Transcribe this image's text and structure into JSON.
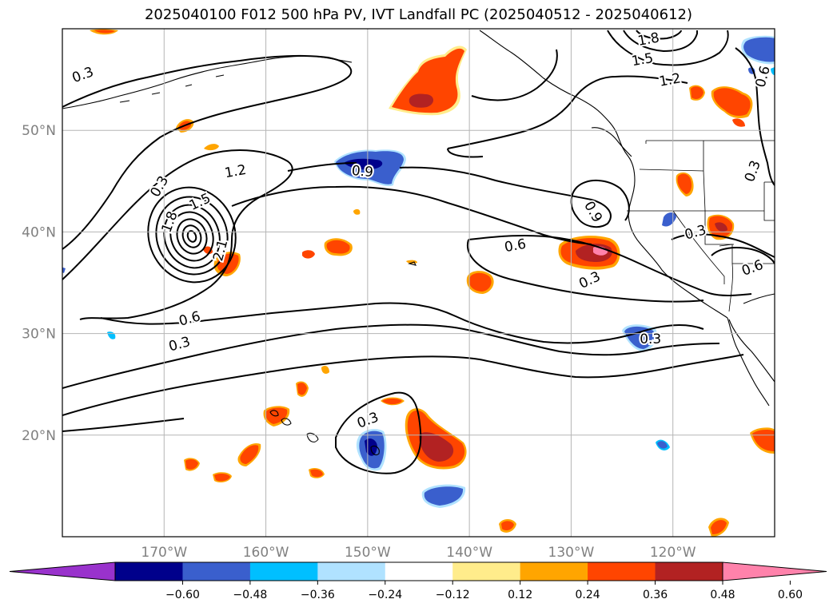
{
  "title": "2025040100 F012 500 hPa PV, IVT Landfall PC (2025040512 - 2025040612)",
  "lon_ticks": [
    {
      "lon": -170,
      "label": "170°W"
    },
    {
      "lon": -160,
      "label": "160°W"
    },
    {
      "lon": -150,
      "label": "150°W"
    },
    {
      "lon": -140,
      "label": "140°W"
    },
    {
      "lon": -130,
      "label": "130°W"
    },
    {
      "lon": -120,
      "label": "120°W"
    }
  ],
  "lat_ticks": [
    {
      "lat": 20,
      "label": "20°N"
    },
    {
      "lat": 30,
      "label": "30°N"
    },
    {
      "lat": 40,
      "label": "40°N"
    },
    {
      "lat": 50,
      "label": "50°N"
    }
  ],
  "extent": {
    "lon_min": -180,
    "lon_max": -110,
    "lat_min": 10,
    "lat_max": 60
  },
  "colorbar": {
    "extend": "both",
    "colors": [
      "#9932cc",
      "#00008b",
      "#3a5fcd",
      "#00bfff",
      "#b0e2ff",
      "#ffffff",
      "#ffec8b",
      "#ffa500",
      "#ff4500",
      "#b22222",
      "#ff82ab"
    ],
    "labels": [
      "−0.60",
      "−0.48",
      "−0.36",
      "−0.24",
      "−0.12",
      "0.12",
      "0.24",
      "0.36",
      "0.48",
      "0.60"
    ]
  },
  "contour_labels": [
    {
      "text": "0.3",
      "lon": -178,
      "lat": 55.5,
      "rot": -20
    },
    {
      "text": "0.3",
      "lon": -170.5,
      "lat": 44.5,
      "rot": -60
    },
    {
      "text": "1.2",
      "lon": -163,
      "lat": 46,
      "rot": -10
    },
    {
      "text": "1.5",
      "lon": -166.5,
      "lat": 43,
      "rot": -25
    },
    {
      "text": "1.8",
      "lon": -169.5,
      "lat": 41,
      "rot": -70
    },
    {
      "text": "2.1",
      "lon": -164.5,
      "lat": 38.2,
      "rot": -75
    },
    {
      "text": "0.9",
      "lon": -150.5,
      "lat": 46,
      "rot": 5
    },
    {
      "text": "0.6",
      "lon": -135.5,
      "lat": 38.7,
      "rot": -10
    },
    {
      "text": "0.9",
      "lon": -127.8,
      "lat": 42,
      "rot": 60
    },
    {
      "text": "0.3",
      "lon": -128.2,
      "lat": 35.3,
      "rot": -25
    },
    {
      "text": "0.3",
      "lon": -168.5,
      "lat": 29,
      "rot": -15
    },
    {
      "text": "0.6",
      "lon": -167.5,
      "lat": 31.5,
      "rot": -15
    },
    {
      "text": "0.3",
      "lon": -150,
      "lat": 21.5,
      "rot": -20
    },
    {
      "text": "0.3",
      "lon": -122.2,
      "lat": 29.5,
      "rot": 0
    },
    {
      "text": "1.8",
      "lon": -122.4,
      "lat": 59,
      "rot": -10
    },
    {
      "text": "1.5",
      "lon": -123,
      "lat": 57,
      "rot": -10
    },
    {
      "text": "1.2",
      "lon": -120.3,
      "lat": 55,
      "rot": -10
    },
    {
      "text": "0.6",
      "lon": -111.2,
      "lat": 55.3,
      "rot": -75
    },
    {
      "text": "0.3",
      "lon": -112.2,
      "lat": 46,
      "rot": -70
    },
    {
      "text": "0.3",
      "lon": -117.8,
      "lat": 40,
      "rot": -15
    },
    {
      "text": "0.6",
      "lon": -112.2,
      "lat": 36.5,
      "rot": -20
    }
  ]
}
